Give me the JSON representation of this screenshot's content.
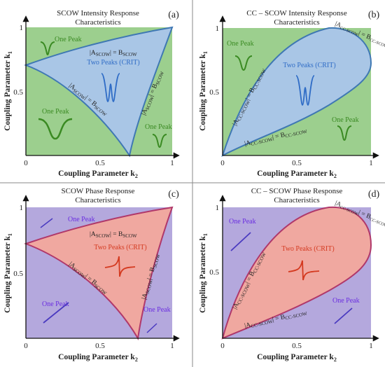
{
  "colors": {
    "green_bg": "#9ccf8e",
    "blue_fill": "#a9c6e6",
    "blue_edge": "#3f78b3",
    "purple_bg": "#b4a8dd",
    "salmon_fill": "#f0a8a0",
    "salmon_edge": "#b0386a",
    "green_text": "#3a8a22",
    "blue_text": "#2f6cc6",
    "purple_text": "#6a2de0",
    "red_text": "#d43a20"
  },
  "panels": [
    {
      "id": "a",
      "label": "(a)",
      "title_line1": "SCOW Intensity Response",
      "title_line2": "Characteristics",
      "xlabel": "Coupling Parameter k",
      "xlabel_sub": "2",
      "ylabel": "Coupling Parameter k",
      "ylabel_sub": "1",
      "xticks": [
        "0",
        "0.5",
        "1"
      ],
      "yticks": [
        "0.5",
        "1"
      ],
      "center_label": "Two Peaks (CRIT)",
      "outer_labels": [
        "One Peak",
        "One Peak",
        "One Peak"
      ],
      "curve_upper_left": "|A",
      "curve_upper_sub": "SCOW",
      "curve_upper_right": "| = B",
      "curve_upper_sub2": "SCOW",
      "curve_lower_left": "|A",
      "curve_lower_sub": "SCOW",
      "curve_lower_right": "| = B",
      "curve_lower_sub2": "SCOW",
      "curve_right_left": "|A",
      "curve_right_sub": "SCOW",
      "curve_right_right": "| = B",
      "curve_right_sub2": "SCOW"
    },
    {
      "id": "b",
      "label": "(b)",
      "title_line1": "CC – SCOW Intensity Response",
      "title_line2": "Characteristics",
      "xlabel": "Coupling Parameter k",
      "xlabel_sub": "2",
      "ylabel": "Coupling Parameter k",
      "ylabel_sub": "1",
      "xticks": [
        "0",
        "0.5",
        "1"
      ],
      "yticks": [
        "0.5",
        "1"
      ],
      "center_label": "Two Peaks (CRIT)",
      "outer_labels": [
        "One Peak",
        "One Peak"
      ],
      "curve_left_left": "|A",
      "curve_left_sub": "CC-SCOW",
      "curve_left_right": "| = B",
      "curve_left_sub2": "CC-SCOW",
      "curve_bottom_left": "|A",
      "curve_bottom_sub": "CC-SCOW",
      "curve_bottom_right": "| = B",
      "curve_bottom_sub2": "CC-SCOW",
      "curve_top_left": "|A",
      "curve_top_sub": "CC-SCOW",
      "curve_top_right": "| = B",
      "curve_top_sub2": "CC-SCOW"
    },
    {
      "id": "c",
      "label": "(c)",
      "title_line1": "SCOW Phase Response",
      "title_line2": "Characteristics",
      "xlabel": "Coupling Parameter k",
      "xlabel_sub": "2",
      "ylabel": "Coupling Parameter k",
      "ylabel_sub": "1",
      "xticks": [
        "0",
        "0.5",
        "1"
      ],
      "yticks": [
        "0.5",
        "1"
      ],
      "center_label": "Two Peaks (CRIT)",
      "outer_labels": [
        "One Peak",
        "One Peak",
        "One Peak"
      ]
    },
    {
      "id": "d",
      "label": "(d)",
      "title_line1": "CC – SCOW Phase Response",
      "title_line2": "Characteristics",
      "xlabel": "Coupling Parameter k",
      "xlabel_sub": "2",
      "ylabel": "Coupling Parameter k",
      "ylabel_sub": "1",
      "xticks": [
        "0",
        "0.5",
        "1"
      ],
      "yticks": [
        "0.5",
        "1"
      ],
      "center_label": "Two Peaks (CRIT)",
      "outer_labels": [
        "One Peak",
        "One Peak"
      ]
    }
  ]
}
